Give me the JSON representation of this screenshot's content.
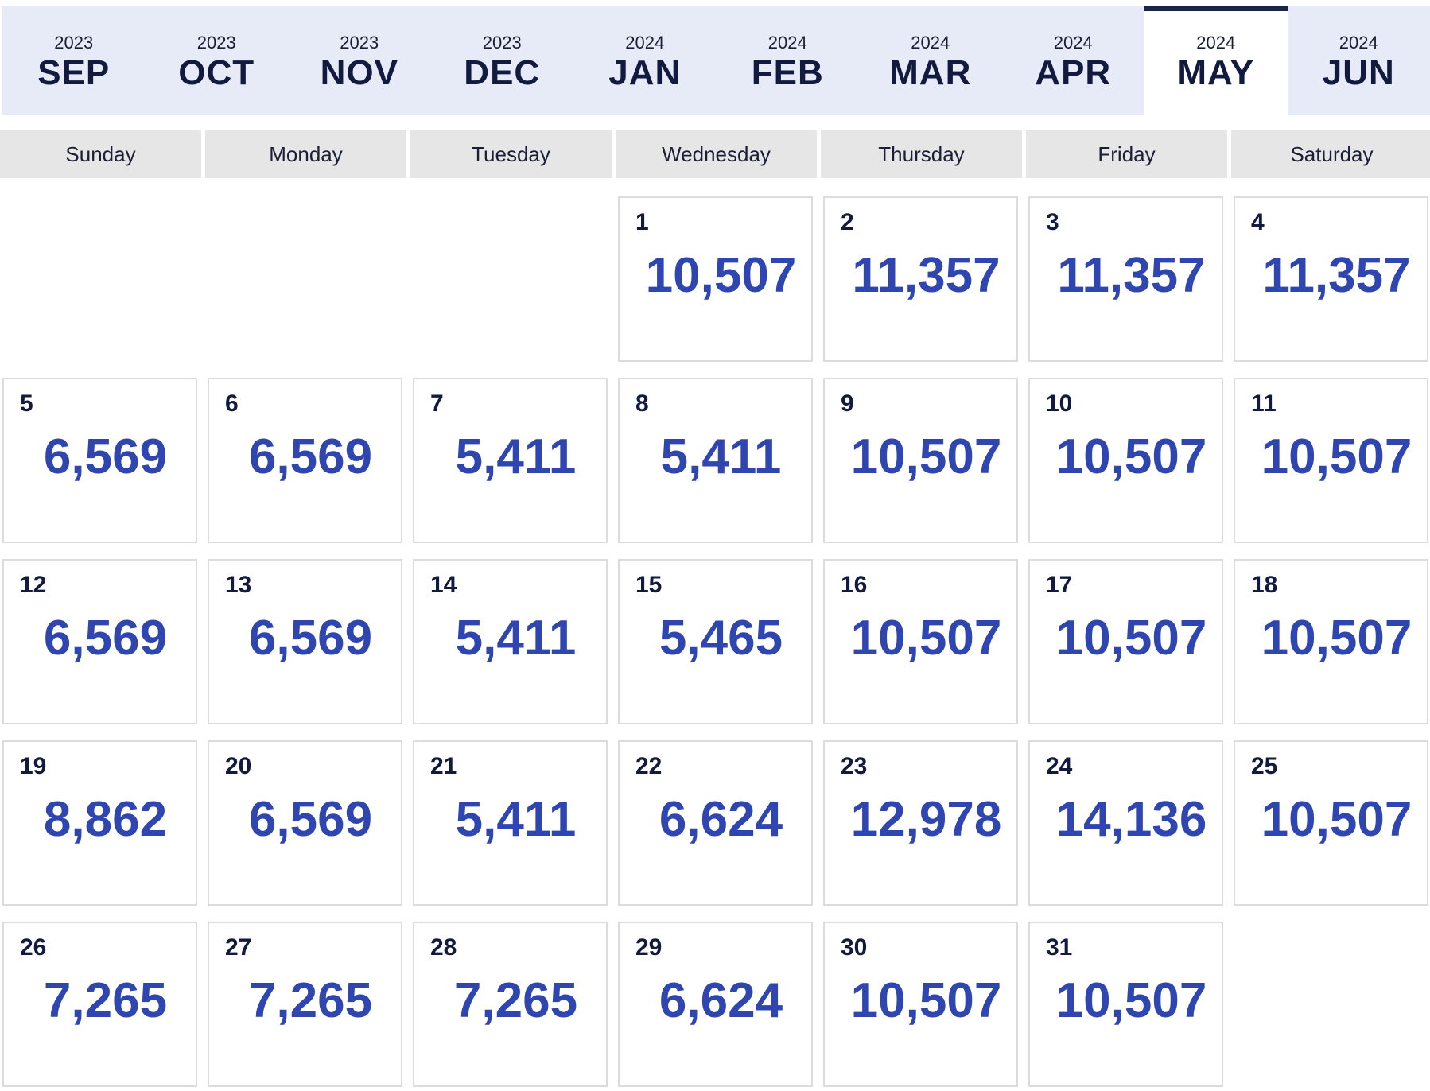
{
  "months": [
    {
      "year": "2023",
      "month": "SEP",
      "active": false
    },
    {
      "year": "2023",
      "month": "OCT",
      "active": false
    },
    {
      "year": "2023",
      "month": "NOV",
      "active": false
    },
    {
      "year": "2023",
      "month": "DEC",
      "active": false
    },
    {
      "year": "2024",
      "month": "JAN",
      "active": false
    },
    {
      "year": "2024",
      "month": "FEB",
      "active": false
    },
    {
      "year": "2024",
      "month": "MAR",
      "active": false
    },
    {
      "year": "2024",
      "month": "APR",
      "active": false
    },
    {
      "year": "2024",
      "month": "MAY",
      "active": true
    },
    {
      "year": "2024",
      "month": "JUN",
      "active": false
    }
  ],
  "weekdays": [
    "Sunday",
    "Monday",
    "Tuesday",
    "Wednesday",
    "Thursday",
    "Friday",
    "Saturday"
  ],
  "calendar": {
    "leading_blank_days": 3,
    "days": [
      {
        "day": "1",
        "price": "10,507"
      },
      {
        "day": "2",
        "price": "11,357"
      },
      {
        "day": "3",
        "price": "11,357"
      },
      {
        "day": "4",
        "price": "11,357"
      },
      {
        "day": "5",
        "price": "6,569"
      },
      {
        "day": "6",
        "price": "6,569"
      },
      {
        "day": "7",
        "price": "5,411"
      },
      {
        "day": "8",
        "price": "5,411"
      },
      {
        "day": "9",
        "price": "10,507"
      },
      {
        "day": "10",
        "price": "10,507"
      },
      {
        "day": "11",
        "price": "10,507"
      },
      {
        "day": "12",
        "price": "6,569"
      },
      {
        "day": "13",
        "price": "6,569"
      },
      {
        "day": "14",
        "price": "5,411"
      },
      {
        "day": "15",
        "price": "5,465"
      },
      {
        "day": "16",
        "price": "10,507"
      },
      {
        "day": "17",
        "price": "10,507"
      },
      {
        "day": "18",
        "price": "10,507"
      },
      {
        "day": "19",
        "price": "8,862"
      },
      {
        "day": "20",
        "price": "6,569"
      },
      {
        "day": "21",
        "price": "5,411"
      },
      {
        "day": "22",
        "price": "6,624"
      },
      {
        "day": "23",
        "price": "12,978"
      },
      {
        "day": "24",
        "price": "14,136"
      },
      {
        "day": "25",
        "price": "10,507"
      },
      {
        "day": "26",
        "price": "7,265"
      },
      {
        "day": "27",
        "price": "7,265"
      },
      {
        "day": "28",
        "price": "7,265"
      },
      {
        "day": "29",
        "price": "6,624"
      },
      {
        "day": "30",
        "price": "10,507"
      },
      {
        "day": "31",
        "price": "10,507"
      }
    ]
  },
  "colors": {
    "tab_bar_bg": "#e7ebf7",
    "active_tab_border": "#1a2348",
    "price_text": "#2f45b0",
    "weekday_bg": "#e6e6e6"
  }
}
